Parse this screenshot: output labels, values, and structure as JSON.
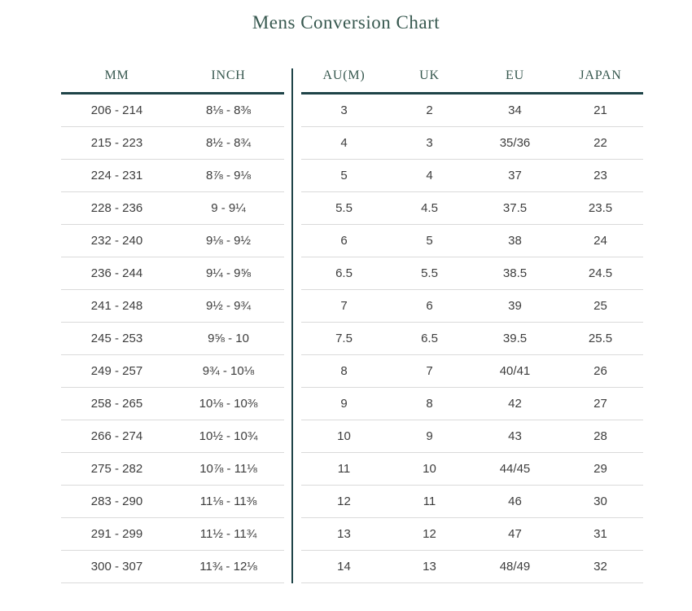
{
  "colors": {
    "title_text": "#37584f",
    "accent_line": "#1e4347",
    "body_text": "#3d3d3d",
    "row_divider": "#dadada",
    "background": "#ffffff"
  },
  "chart_data": {
    "type": "table",
    "title": "Mens Conversion Chart",
    "columns": [
      "MM",
      "INCH",
      "AU(M)",
      "UK",
      "EU",
      "JAPAN"
    ],
    "rows": [
      [
        "206 - 214",
        "8⅛ - 8⅜",
        "3",
        "2",
        "34",
        "21"
      ],
      [
        "215 - 223",
        "8½ - 8¾",
        "4",
        "3",
        "35/36",
        "22"
      ],
      [
        "224 - 231",
        "8⅞ - 9⅛",
        "5",
        "4",
        "37",
        "23"
      ],
      [
        "228 - 236",
        "9 - 9¼",
        "5.5",
        "4.5",
        "37.5",
        "23.5"
      ],
      [
        "232 - 240",
        "9⅛ - 9½",
        "6",
        "5",
        "38",
        "24"
      ],
      [
        "236 - 244",
        "9¼ - 9⅝",
        "6.5",
        "5.5",
        "38.5",
        "24.5"
      ],
      [
        "241 - 248",
        "9½ - 9¾",
        "7",
        "6",
        "39",
        "25"
      ],
      [
        "245 - 253",
        "9⅝ - 10",
        "7.5",
        "6.5",
        "39.5",
        "25.5"
      ],
      [
        "249 - 257",
        "9¾ - 10⅛",
        "8",
        "7",
        "40/41",
        "26"
      ],
      [
        "258 - 265",
        "10⅛ - 10⅜",
        "9",
        "8",
        "42",
        "27"
      ],
      [
        "266 - 274",
        "10½ - 10¾",
        "10",
        "9",
        "43",
        "28"
      ],
      [
        "275 - 282",
        "10⅞ - 11⅛",
        "11",
        "10",
        "44/45",
        "29"
      ],
      [
        "283 - 290",
        "11⅛ - 11⅜",
        "12",
        "11",
        "46",
        "30"
      ],
      [
        "291 - 299",
        "11½ - 11¾",
        "13",
        "12",
        "47",
        "31"
      ],
      [
        "300 - 307",
        "11¾ - 12⅛",
        "14",
        "13",
        "48/49",
        "32"
      ]
    ],
    "layout": {
      "left_columns": [
        0,
        1
      ],
      "right_columns": [
        2,
        3,
        4,
        5
      ],
      "split": "vertical-divider-between-inch-and-aum",
      "grid": "horizontal-row-separators-only"
    }
  }
}
